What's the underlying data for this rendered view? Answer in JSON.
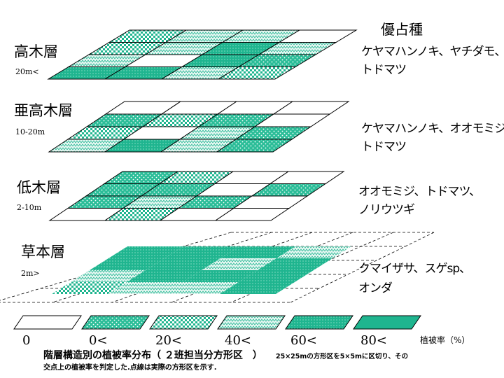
{
  "dominant_header": "優占種",
  "layers": [
    {
      "name": "高木層",
      "height": "20m<",
      "species": [
        "ケヤマハンノキ、ヤチダモ、",
        "トドマツ"
      ],
      "grid": [
        [
          2,
          3,
          3,
          0
        ],
        [
          2,
          3,
          4,
          3
        ],
        [
          3,
          0,
          4,
          1
        ],
        [
          4,
          4,
          3,
          2
        ]
      ]
    },
    {
      "name": "亜高木層",
      "height": "10-20m",
      "species": [
        "ケヤマハンノキ、オオモミジ、",
        "トドマツ"
      ],
      "grid": [
        [
          0,
          0,
          0,
          0
        ],
        [
          1,
          2,
          1,
          0
        ],
        [
          2,
          0,
          3,
          1
        ],
        [
          3,
          4,
          3,
          1
        ]
      ]
    },
    {
      "name": "低木層",
      "height": "2-10m",
      "species": [
        "オオモミジ、トドマツ、",
        "ノリウツギ"
      ],
      "grid": [
        [
          1,
          2,
          0,
          0
        ],
        [
          1,
          1,
          0,
          1
        ],
        [
          1,
          3,
          1,
          0
        ],
        [
          0,
          2,
          0,
          0
        ]
      ]
    },
    {
      "name": "草本層",
      "height": "2m>",
      "species": [
        "クマイザサ、スゲsp、",
        "オンダ"
      ],
      "grid": [
        [
          4,
          4,
          4,
          3
        ],
        [
          4,
          4,
          3,
          4
        ],
        [
          3,
          4,
          4,
          4
        ],
        [
          2,
          3,
          3,
          4
        ]
      ]
    }
  ],
  "legend": {
    "items": [
      {
        "label": "0",
        "pattern": "white"
      },
      {
        "label": "0<",
        "pattern": "dots"
      },
      {
        "label": "20<",
        "pattern": "checker"
      },
      {
        "label": "40<",
        "pattern": "zigzag"
      },
      {
        "label": "60<",
        "pattern": "dots-dense"
      },
      {
        "label": "80<",
        "pattern": "solid"
      }
    ],
    "unit": "植被率（%）"
  },
  "caption": {
    "main": "階層構造別の植被率分布（ ２班担当分方形区　）",
    "small": "25×25mの方形区を5×5mに区切り、その",
    "note": "交点上の植被率を判定した.点線は実際の方形区を示す."
  },
  "colors": {
    "teal": "#1fb58f",
    "teal_dark": "#0f9f7a",
    "line": "#000000"
  }
}
